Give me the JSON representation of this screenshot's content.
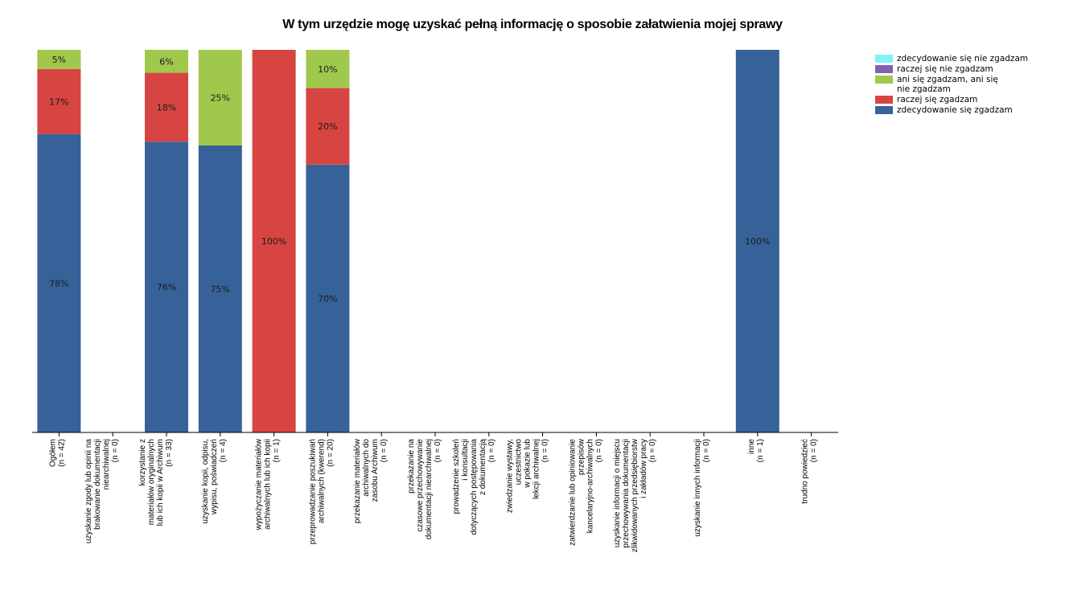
{
  "chart_data": {
    "type": "bar",
    "stacked": true,
    "percent": true,
    "title": "W tym urzędzie mogę uzyskać pełną informację o sposobie załatwienia mojej sprawy",
    "xlabel": "",
    "ylabel": "",
    "ylim": [
      0,
      100
    ],
    "grid": false,
    "legend_position": "top-right",
    "categories": [
      [
        "Ogółem",
        "(n = 42)"
      ],
      [
        "uzyskanie zgody lub opinii na",
        "brakowanie dokumentacji",
        "niearchiwalnej",
        "(n = 0)"
      ],
      [
        "korzystanie z",
        "materiałów oryginalnych",
        "lub ich kopii w Archiwum",
        "(n = 33)"
      ],
      [
        "uzyskanie kopii, odpisu,",
        "wypisu, poświadczeń",
        "(n = 4)"
      ],
      [
        "wypożyczanie materiałów",
        "archiwalnych lub ich kopii",
        "(n = 1)"
      ],
      [
        "przeprowadzanie poszukiwań",
        "archiwalnych (kwerend)",
        "(n = 20)"
      ],
      [
        "przekazanie materiałów",
        "archiwalnych do",
        "zasobu Archiwum",
        "(n = 0)"
      ],
      [
        "przekazanie na",
        "czasowe przechowywanie",
        "dokumentacji niearchiwalnej",
        "(n = 0)"
      ],
      [
        "prowadzenie szkoleń",
        "i konsultacji",
        "dotyczących postępowania",
        "z dokumentacją",
        "(n = 0)"
      ],
      [
        "zwiedzanie wystawy,",
        "uczestnictwo",
        "w pokazie lub",
        "lekcji archiwalnej",
        "(n = 0)"
      ],
      [
        "zatwierdzanie lub opiniowanie",
        "przepisów",
        "kancelaryjno-archiwalnych",
        "(n = 0)"
      ],
      [
        "uzyskanie informacji o miejscu",
        "przechowywania dokumentacji",
        "zlikwidowanych przedsiębiorstw",
        "i zakładów pracy",
        "(n = 0)"
      ],
      [
        "uzyskanie innych informacji",
        "(n = 0)"
      ],
      [
        "inne",
        "(n = 1)"
      ],
      [
        "trudno powiedzieć",
        "(n = 0)"
      ]
    ],
    "series": [
      {
        "name": "zdecydowanie się zgadzam",
        "color": "#376299",
        "values": [
          78,
          0,
          76,
          75,
          0,
          70,
          0,
          0,
          0,
          0,
          0,
          0,
          0,
          100,
          0
        ],
        "labels": [
          "78%",
          "",
          "76%",
          "75%",
          "",
          "70%",
          "",
          "",
          "",
          "",
          "",
          "",
          "",
          "100%",
          ""
        ]
      },
      {
        "name": "raczej się zgadzam",
        "color": "#d64541",
        "values": [
          17,
          0,
          18,
          0,
          100,
          20,
          0,
          0,
          0,
          0,
          0,
          0,
          0,
          0,
          0
        ],
        "labels": [
          "17%",
          "",
          "18%",
          "",
          "100%",
          "20%",
          "",
          "",
          "",
          "",
          "",
          "",
          "",
          "",
          ""
        ]
      },
      {
        "name": "ani się zgadzam, ani się nie zgadzam",
        "color": "#a0c84c",
        "values": [
          5,
          0,
          6,
          25,
          0,
          10,
          0,
          0,
          0,
          0,
          0,
          0,
          0,
          0,
          0
        ],
        "labels": [
          "5%",
          "",
          "6%",
          "25%",
          "",
          "10%",
          "",
          "",
          "",
          "",
          "",
          "",
          "",
          "",
          ""
        ]
      },
      {
        "name": "raczej się nie zgadzam",
        "color": "#8062b0",
        "values": [
          0,
          0,
          0,
          0,
          0,
          0,
          0,
          0,
          0,
          0,
          0,
          0,
          0,
          0,
          0
        ],
        "labels": []
      },
      {
        "name": "zdecydowanie się nie zgadzam",
        "color": "#7ff5f8",
        "values": [
          0,
          0,
          0,
          0,
          0,
          0,
          0,
          0,
          0,
          0,
          0,
          0,
          0,
          0,
          0
        ],
        "labels": []
      }
    ]
  },
  "legend": [
    {
      "label_lines": [
        "zdecydowanie się nie zgadzam"
      ],
      "color": "#7ff5f8"
    },
    {
      "label_lines": [
        "raczej się nie zgadzam"
      ],
      "color": "#8062b0"
    },
    {
      "label_lines": [
        "ani się zgadzam, ani się",
        "nie zgadzam"
      ],
      "color": "#a0c84c"
    },
    {
      "label_lines": [
        "raczej się zgadzam"
      ],
      "color": "#d64541"
    },
    {
      "label_lines": [
        "zdecydowanie się zgadzam"
      ],
      "color": "#376299"
    }
  ]
}
